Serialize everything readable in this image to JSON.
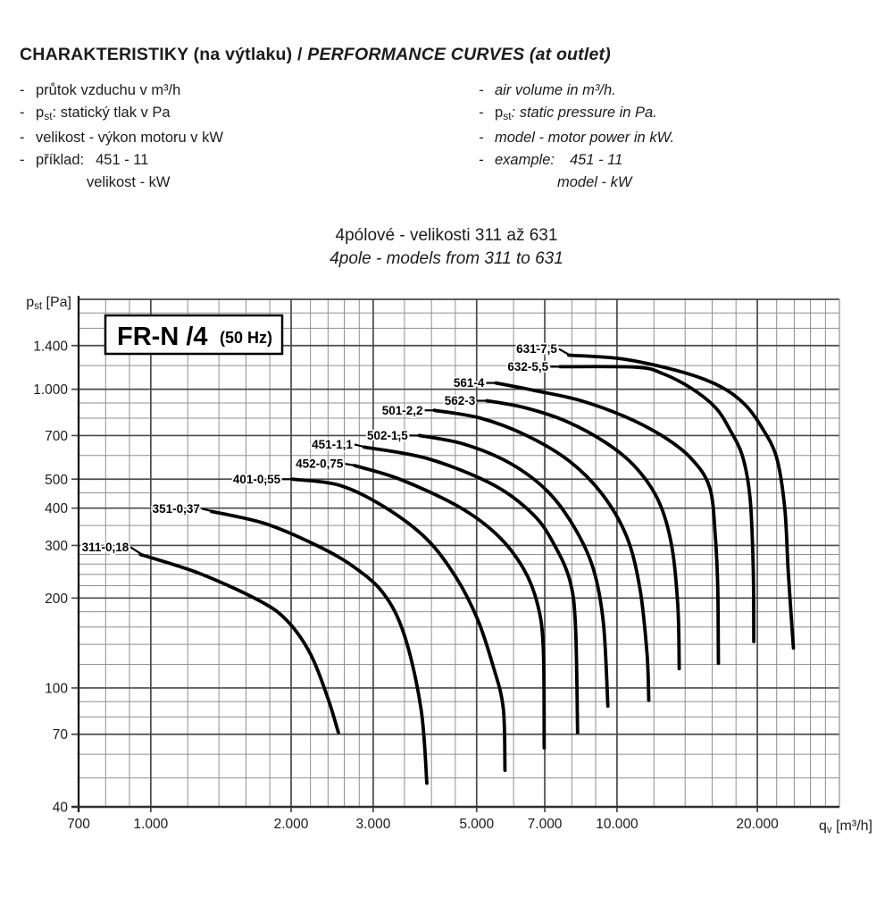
{
  "header": {
    "title_cz": "CHARAKTERISTIKY (na výtlaku)",
    "title_sep": " / ",
    "title_en": "PERFORMANCE CURVES (at outlet)"
  },
  "legend_cz": {
    "items": [
      {
        "segs": [
          {
            "t": "průtok vzduchu v m³/h"
          }
        ]
      },
      {
        "segs": [
          {
            "t": "p"
          },
          {
            "t": "st",
            "sub": true
          },
          {
            "t": ": statický tlak v Pa"
          }
        ]
      },
      {
        "segs": [
          {
            "t": "velikost - výkon motoru v kW"
          }
        ]
      },
      {
        "segs": [
          {
            "t": "příklad:"
          },
          {
            "t": "451 - 11",
            "tab": true
          }
        ]
      },
      {
        "indent": true,
        "segs": [
          {
            "t": "velikost - kW"
          }
        ]
      }
    ]
  },
  "legend_en": {
    "items": [
      {
        "segs": [
          {
            "t": "air volume in m³/h."
          }
        ]
      },
      {
        "segs": [
          {
            "t": "p",
            "up": true
          },
          {
            "t": "st",
            "sub": true,
            "up": true
          },
          {
            "t": ": static pressure in Pa."
          }
        ]
      },
      {
        "segs": [
          {
            "t": "model - motor power in kW."
          }
        ]
      },
      {
        "segs": [
          {
            "t": "example:"
          },
          {
            "t": "451 - 11",
            "tab": true
          }
        ]
      },
      {
        "indent": true,
        "segs": [
          {
            "t": "model - kW"
          }
        ]
      }
    ]
  },
  "subtitle": {
    "line1": "4pólové - velikosti 311 až 631",
    "line2": "4pole - models from 311 to 631"
  },
  "chart_data": {
    "type": "line",
    "title": "FR-N /4",
    "title_suffix": "(50 Hz)",
    "grid": true,
    "x_axis": {
      "main": "q",
      "sub": "v",
      "unit": " [m³/h]",
      "scale": "log",
      "range": [
        700,
        30000
      ],
      "ticks": [
        {
          "v": 700,
          "label": "700"
        },
        {
          "v": 1000,
          "label": "1.000"
        },
        {
          "v": 2000,
          "label": "2.000"
        },
        {
          "v": 3000,
          "label": "3.000"
        },
        {
          "v": 5000,
          "label": "5.000"
        },
        {
          "v": 7000,
          "label": "7.000"
        },
        {
          "v": 10000,
          "label": "10.000"
        },
        {
          "v": 20000,
          "label": "20.000"
        }
      ],
      "minor": [
        800,
        900,
        1200,
        1400,
        1600,
        1800,
        2200,
        2400,
        2600,
        2800,
        3500,
        4000,
        4500,
        6000,
        8000,
        9000,
        12000,
        14000,
        16000,
        18000,
        22000,
        24000,
        26000,
        28000
      ]
    },
    "y_axis": {
      "main": "p",
      "sub": "st",
      "unit": " [Pa]",
      "scale": "log",
      "range": [
        40,
        2000
      ],
      "ticks": [
        {
          "v": 1400,
          "label": "1.400"
        },
        {
          "v": 1000,
          "label": "1.000"
        },
        {
          "v": 700,
          "label": "700"
        },
        {
          "v": 500,
          "label": "500"
        },
        {
          "v": 400,
          "label": "400"
        },
        {
          "v": 300,
          "label": "300"
        },
        {
          "v": 200,
          "label": "200"
        },
        {
          "v": 100,
          "label": "100"
        },
        {
          "v": 70,
          "label": "70"
        },
        {
          "v": 40,
          "label": "40"
        }
      ],
      "minor": [
        50,
        60,
        80,
        90,
        120,
        140,
        160,
        180,
        220,
        240,
        260,
        280,
        350,
        450,
        600,
        800,
        900,
        1200,
        1600,
        1800
      ]
    },
    "series": [
      {
        "name": "311-0,18",
        "label_dy": -8,
        "points": [
          [
            950,
            280
          ],
          [
            1270,
            242
          ],
          [
            1710,
            196
          ],
          [
            1960,
            168
          ],
          [
            2200,
            130
          ],
          [
            2400,
            92
          ],
          [
            2525,
            71
          ]
        ]
      },
      {
        "name": "351-0,37",
        "label_dy": -3,
        "points": [
          [
            1350,
            390
          ],
          [
            1750,
            356
          ],
          [
            2250,
            302
          ],
          [
            2690,
            258
          ],
          [
            3150,
            208
          ],
          [
            3500,
            150
          ],
          [
            3800,
            85
          ],
          [
            3910,
            48
          ]
        ]
      },
      {
        "name": "401-0,55",
        "label_dy": 0,
        "points": [
          [
            2010,
            500
          ],
          [
            2540,
            477
          ],
          [
            3160,
            405
          ],
          [
            3900,
            316
          ],
          [
            4520,
            234
          ],
          [
            5020,
            170
          ],
          [
            5410,
            120
          ],
          [
            5700,
            86
          ],
          [
            5750,
            53
          ]
        ]
      },
      {
        "name": "452-0,75",
        "label_dy": -2,
        "points": [
          [
            2740,
            555
          ],
          [
            3420,
            500
          ],
          [
            4570,
            405
          ],
          [
            5560,
            323
          ],
          [
            6310,
            250
          ],
          [
            6760,
            190
          ],
          [
            6950,
            135
          ],
          [
            6980,
            63
          ]
        ]
      },
      {
        "name": "451-1,1",
        "label_dy": -3,
        "points": [
          [
            2870,
            640
          ],
          [
            3940,
            585
          ],
          [
            5440,
            478
          ],
          [
            6620,
            380
          ],
          [
            7350,
            300
          ],
          [
            7930,
            228
          ],
          [
            8150,
            160
          ],
          [
            8230,
            71
          ]
        ]
      },
      {
        "name": "502-1,5",
        "label_dy": 0,
        "points": [
          [
            3770,
            700
          ],
          [
            4700,
            655
          ],
          [
            5900,
            565
          ],
          [
            7100,
            455
          ],
          [
            8100,
            345
          ],
          [
            8900,
            250
          ],
          [
            9350,
            165
          ],
          [
            9560,
            87
          ]
        ]
      },
      {
        "name": "501-2,2",
        "label_dy": 0,
        "points": [
          [
            4060,
            850
          ],
          [
            5100,
            800
          ],
          [
            6400,
            700
          ],
          [
            7900,
            575
          ],
          [
            9300,
            445
          ],
          [
            10500,
            320
          ],
          [
            11200,
            215
          ],
          [
            11600,
            130
          ],
          [
            11700,
            91
          ]
        ]
      },
      {
        "name": "562-3",
        "label_dy": 0,
        "points": [
          [
            5260,
            915
          ],
          [
            6300,
            870
          ],
          [
            7800,
            780
          ],
          [
            9500,
            660
          ],
          [
            11000,
            545
          ],
          [
            12300,
            420
          ],
          [
            13100,
            300
          ],
          [
            13500,
            190
          ],
          [
            13600,
            116
          ]
        ]
      },
      {
        "name": "561-4",
        "label_dy": 0,
        "points": [
          [
            5500,
            1050
          ],
          [
            6660,
            990
          ],
          [
            8280,
            920
          ],
          [
            10400,
            810
          ],
          [
            12470,
            700
          ],
          [
            14370,
            590
          ],
          [
            15800,
            470
          ],
          [
            16250,
            322
          ],
          [
            16450,
            215
          ],
          [
            16500,
            121
          ]
        ]
      },
      {
        "name": "632-5,5",
        "label_dy": 0,
        "points": [
          [
            7550,
            1190
          ],
          [
            11000,
            1185
          ],
          [
            12500,
            1130
          ],
          [
            14400,
            1010
          ],
          [
            16250,
            870
          ],
          [
            17400,
            740
          ],
          [
            18600,
            595
          ],
          [
            19300,
            430
          ],
          [
            19600,
            250
          ],
          [
            19650,
            143
          ]
        ]
      },
      {
        "name": "631-7,5",
        "label_dy": -7,
        "points": [
          [
            7880,
            1300
          ],
          [
            10400,
            1260
          ],
          [
            14000,
            1135
          ],
          [
            16700,
            1020
          ],
          [
            18800,
            890
          ],
          [
            20500,
            740
          ],
          [
            22000,
            590
          ],
          [
            22900,
            400
          ],
          [
            23300,
            245
          ],
          [
            23900,
            136
          ]
        ]
      }
    ],
    "colors": {
      "curve": "#000000",
      "grid_minor": "#8f8f8f",
      "grid_major": "#4a4a4a",
      "axis": "#000000",
      "text": "#1c1c1c"
    }
  }
}
